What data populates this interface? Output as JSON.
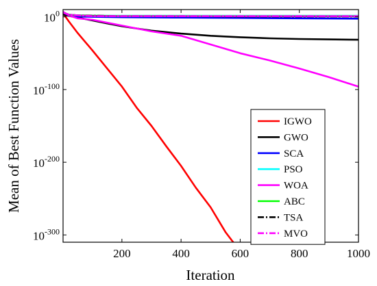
{
  "chart_data": {
    "type": "line",
    "xlabel": "Iteration",
    "ylabel": "Mean of Best Function Values",
    "xlim": [
      1,
      1000
    ],
    "ylim_log10": [
      -310,
      10
    ],
    "yscale": "log",
    "grid": false,
    "legend_position": "right-center",
    "x_ticks": [
      {
        "value": 200,
        "label": "200"
      },
      {
        "value": 400,
        "label": "400"
      },
      {
        "value": 600,
        "label": "600"
      },
      {
        "value": 800,
        "label": "800"
      },
      {
        "value": 1000,
        "label": "1000"
      }
    ],
    "y_ticks": [
      {
        "exp": 0,
        "base": "10",
        "exponent": "0"
      },
      {
        "exp": -100,
        "base": "10",
        "exponent": "-100"
      },
      {
        "exp": -200,
        "base": "10",
        "exponent": "-200"
      },
      {
        "exp": -300,
        "base": "10",
        "exponent": "-300"
      }
    ],
    "series": [
      {
        "name": "IGWO",
        "color": "#ff0000",
        "style": "solid",
        "x": [
          1,
          20,
          50,
          100,
          150,
          200,
          250,
          300,
          350,
          400,
          450,
          500,
          550,
          580
        ],
        "y_log10": [
          5,
          -6,
          -22,
          -46,
          -71,
          -96,
          -125,
          -150,
          -178,
          -205,
          -235,
          -262,
          -296,
          -312
        ]
      },
      {
        "name": "GWO",
        "color": "#000000",
        "style": "solid",
        "x": [
          1,
          25,
          50,
          100,
          150,
          200,
          250,
          300,
          350,
          400,
          450,
          500,
          600,
          700,
          800,
          900,
          1000
        ],
        "y_log10": [
          3,
          1,
          -1,
          -5,
          -9,
          -13,
          -16,
          -19,
          -21,
          -23,
          -24.5,
          -26,
          -28,
          -29.5,
          -30.5,
          -31,
          -31.5
        ]
      },
      {
        "name": "SCA",
        "color": "#0000ff",
        "style": "solid",
        "x": [
          1,
          20,
          50,
          100,
          200,
          400,
          600,
          800,
          1000
        ],
        "y_log10": [
          6,
          2,
          0.5,
          0,
          -0.5,
          -1,
          -1.5,
          -2,
          -2.5
        ]
      },
      {
        "name": "PSO",
        "color": "#00ffff",
        "style": "solid",
        "x": [
          1,
          20,
          50,
          100,
          200,
          400,
          600,
          800,
          1000
        ],
        "y_log10": [
          6,
          3,
          2,
          1.5,
          1.5,
          1.5,
          1.5,
          1.5,
          1.5
        ]
      },
      {
        "name": "WOA",
        "color": "#ff00ff",
        "style": "solid",
        "x": [
          1,
          20,
          50,
          100,
          200,
          300,
          400,
          500,
          600,
          700,
          800,
          900,
          1000
        ],
        "y_log10": [
          7,
          2,
          -2,
          -4,
          -12,
          -20,
          -26,
          -38,
          -50,
          -60,
          -71,
          -83,
          -96
        ]
      },
      {
        "name": "ABC",
        "color": "#00ff00",
        "style": "solid",
        "x": [
          1,
          20,
          50,
          100,
          200,
          400,
          600,
          800,
          1000
        ],
        "y_log10": [
          6,
          3,
          2,
          1.5,
          1.2,
          1,
          1,
          1,
          1
        ]
      },
      {
        "name": "TSA",
        "color": "#000000",
        "style": "dashdot",
        "x": [
          1,
          20,
          50,
          100,
          200,
          400,
          600,
          800,
          1000
        ],
        "y_log10": [
          6,
          3,
          2,
          1.5,
          1,
          1,
          0.5,
          0.5,
          0.5
        ]
      },
      {
        "name": "MVO",
        "color": "#ff00ff",
        "style": "dashdot",
        "x": [
          1,
          20,
          50,
          100,
          200,
          400,
          600,
          800,
          1000
        ],
        "y_log10": [
          6,
          3,
          2,
          1,
          1,
          1,
          1,
          1,
          1
        ]
      }
    ]
  }
}
